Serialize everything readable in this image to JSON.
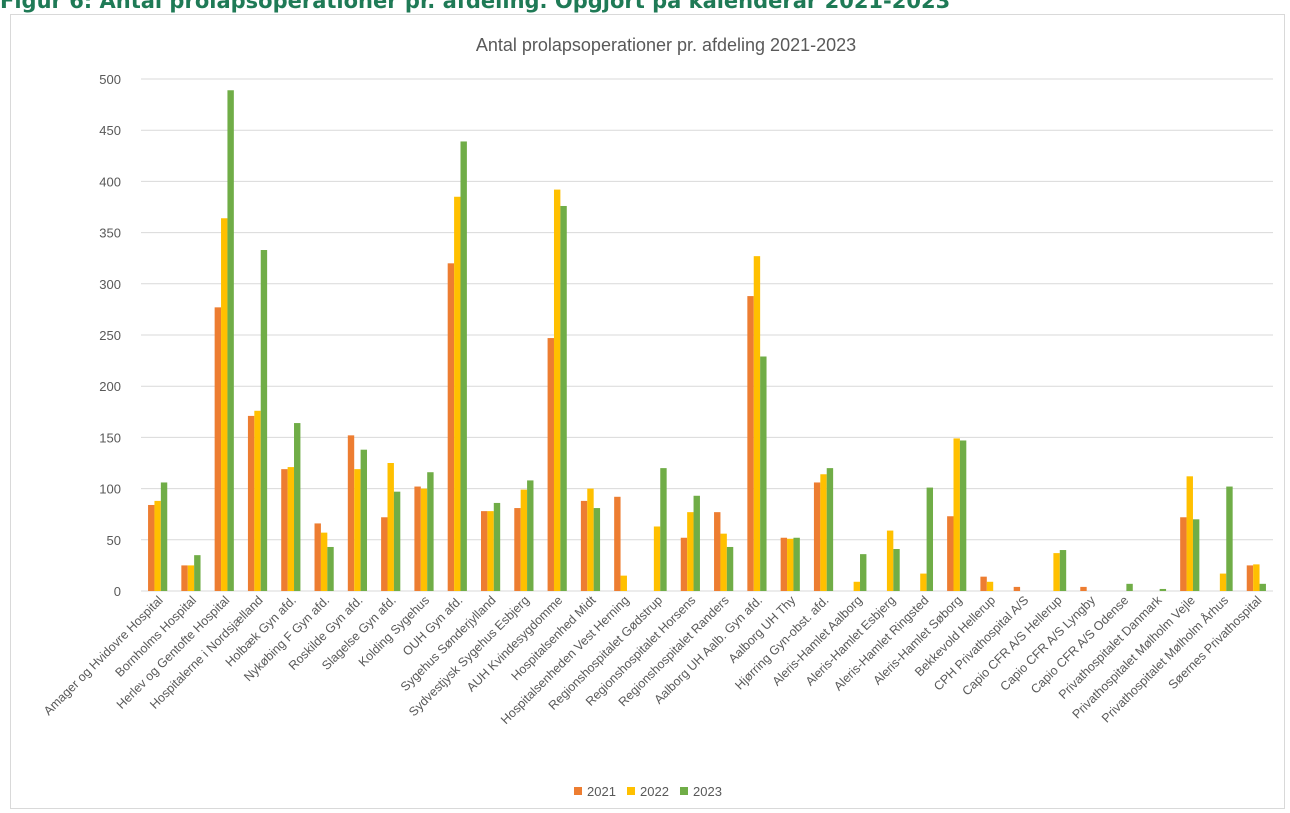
{
  "figure_caption": "Figur 6: Antal prolapsoperationer pr. afdeling. Opgjort på kalenderår 2021-2023",
  "chart_data": {
    "type": "bar",
    "title": "Antal prolapsoperationer pr. afdeling 2021-2023",
    "xlabel": "",
    "ylabel": "",
    "ylim": [
      0,
      500
    ],
    "yticks": [
      0,
      50,
      100,
      150,
      200,
      250,
      300,
      350,
      400,
      450,
      500
    ],
    "grid": true,
    "legend": "bottom",
    "categories": [
      "Amager og Hvidovre Hospital",
      "Bornholms Hospital",
      "Herlev og Gentofte Hospital",
      "Hospitalerne i Nordsjælland",
      "Holbæk Gyn afd.",
      "Nykøbing F Gyn afd.",
      "Roskilde Gyn afd.",
      "Slagelse Gyn afd.",
      "Kolding Sygehus",
      "OUH Gyn afd.",
      "Sygehus Sønderjylland",
      "Sydvestjysk Sygehus Esbjerg",
      "AUH Kvindesygdomme",
      "Hospitalsenhed Midt",
      "Hospitalsenheden Vest Herning",
      "Regionshospitalet Gødstrup",
      "Regionshospitalet Horsens",
      "Regionshospitalet Randers",
      "Aalborg UH Aalb. Gyn afd.",
      "Aalborg UH Thy",
      "Hjørring Gyn-obst. afd.",
      "Aleris-Hamlet Aalborg",
      "Aleris-Hamlet Esbjerg",
      "Aleris-Hamlet Ringsted",
      "Aleris-Hamlet Søborg",
      "Bekkevold Hellerup",
      "CPH Privathospital A/S",
      "Capio CFR A/S Hellerup",
      "Capio CFR A/S Lyngby",
      "Capio CFR A/S Odense",
      "Privathospitalet Danmark",
      "Privathospitalet Mølholm Vejle",
      "Privathospitalet Mølholm Århus",
      "Søernes Privathospital"
    ],
    "series": [
      {
        "name": "2021",
        "color": "#ed7d31",
        "values": [
          84,
          25,
          277,
          171,
          119,
          66,
          152,
          72,
          102,
          320,
          78,
          81,
          247,
          88,
          92,
          0,
          52,
          77,
          288,
          52,
          106,
          0,
          0,
          0,
          73,
          14,
          4,
          0,
          4,
          0,
          0,
          72,
          0,
          25
        ]
      },
      {
        "name": "2022",
        "color": "#ffc000",
        "values": [
          88,
          25,
          364,
          176,
          121,
          57,
          119,
          125,
          100,
          385,
          78,
          99,
          392,
          100,
          15,
          63,
          77,
          56,
          327,
          51,
          114,
          9,
          59,
          17,
          149,
          9,
          0,
          37,
          0,
          0,
          0,
          112,
          17,
          26
        ]
      },
      {
        "name": "2023",
        "color": "#70ad47",
        "values": [
          106,
          35,
          489,
          333,
          164,
          43,
          138,
          97,
          116,
          439,
          86,
          108,
          376,
          81,
          0,
          120,
          93,
          43,
          229,
          52,
          120,
          36,
          41,
          101,
          147,
          0,
          0,
          40,
          0,
          7,
          2,
          70,
          102,
          7
        ]
      }
    ]
  }
}
